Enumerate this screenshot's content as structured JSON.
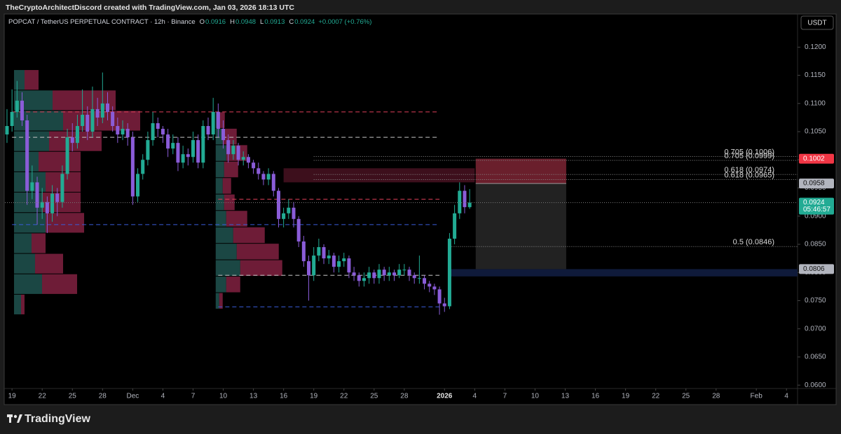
{
  "header": {
    "credit": "TheCryptoArchitectDiscord created with TradingView.com, Jan 03, 2026 18:13 UTC",
    "brand": "TradingView"
  },
  "chart_data": {
    "type": "candlestick",
    "title": "POPCAT / TetherUS PERPETUAL CONTRACT · 12h · Binance",
    "ohlc_legend": {
      "labels": [
        "O",
        "H",
        "L",
        "C"
      ],
      "values": [
        0.0916,
        0.0948,
        0.0913,
        0.0924
      ]
    },
    "change": "+0.0007 (+0.76%)",
    "currency": "USDT",
    "series": [
      {
        "up_color": "#22ab94",
        "down_color": "#8a5cd8",
        "ohlc": [
          [
            0.1045,
            0.109,
            0.103,
            0.106
          ],
          [
            0.106,
            0.1125,
            0.105,
            0.1085
          ],
          [
            0.1085,
            0.114,
            0.1075,
            0.1105
          ],
          [
            0.1105,
            0.112,
            0.106,
            0.107
          ],
          [
            0.107,
            0.108,
            0.092,
            0.0945
          ],
          [
            0.0945,
            0.099,
            0.093,
            0.096
          ],
          [
            0.096,
            0.097,
            0.0885,
            0.0915
          ],
          [
            0.0915,
            0.095,
            0.0895,
            0.0925
          ],
          [
            0.0925,
            0.0935,
            0.087,
            0.0905
          ],
          [
            0.0905,
            0.0955,
            0.089,
            0.094
          ],
          [
            0.094,
            0.095,
            0.09,
            0.0925
          ],
          [
            0.0925,
            0.099,
            0.0915,
            0.0975
          ],
          [
            0.0975,
            0.1055,
            0.0965,
            0.104
          ],
          [
            0.104,
            0.1065,
            0.1015,
            0.103
          ],
          [
            0.103,
            0.108,
            0.102,
            0.106
          ],
          [
            0.106,
            0.1125,
            0.105,
            0.108
          ],
          [
            0.108,
            0.1095,
            0.1035,
            0.105
          ],
          [
            0.105,
            0.113,
            0.104,
            0.109
          ],
          [
            0.109,
            0.111,
            0.106,
            0.1075
          ],
          [
            0.1075,
            0.1155,
            0.1065,
            0.11
          ],
          [
            0.11,
            0.112,
            0.107,
            0.1085
          ],
          [
            0.1085,
            0.1095,
            0.105,
            0.106
          ],
          [
            0.106,
            0.1075,
            0.103,
            0.1045
          ],
          [
            0.1045,
            0.107,
            0.1035,
            0.1055
          ],
          [
            0.1055,
            0.1065,
            0.1025,
            0.104
          ],
          [
            0.104,
            0.105,
            0.092,
            0.0935
          ],
          [
            0.0935,
            0.0985,
            0.0925,
            0.0975
          ],
          [
            0.0975,
            0.101,
            0.0965,
            0.1
          ],
          [
            0.1,
            0.105,
            0.099,
            0.1035
          ],
          [
            0.1035,
            0.1085,
            0.1025,
            0.1065
          ],
          [
            0.1065,
            0.1075,
            0.104,
            0.1055
          ],
          [
            0.1055,
            0.106,
            0.103,
            0.1045
          ],
          [
            0.1045,
            0.1055,
            0.1005,
            0.102
          ],
          [
            0.102,
            0.1045,
            0.101,
            0.103
          ],
          [
            0.103,
            0.104,
            0.098,
            0.0995
          ],
          [
            0.0995,
            0.1025,
            0.0985,
            0.101
          ],
          [
            0.101,
            0.102,
            0.099,
            0.1005
          ],
          [
            0.1005,
            0.105,
            0.0995,
            0.1035
          ],
          [
            0.1035,
            0.1045,
            0.0985,
            0.0995
          ],
          [
            0.0995,
            0.107,
            0.0985,
            0.106
          ],
          [
            0.106,
            0.1075,
            0.1035,
            0.1045
          ],
          [
            0.1045,
            0.111,
            0.1035,
            0.1085
          ],
          [
            0.1085,
            0.11,
            0.104,
            0.1055
          ],
          [
            0.1055,
            0.107,
            0.102,
            0.1035
          ],
          [
            0.1035,
            0.1045,
            0.0995,
            0.101
          ],
          [
            0.101,
            0.1035,
            0.1,
            0.1025
          ],
          [
            0.1025,
            0.103,
            0.099,
            0.1
          ],
          [
            0.1,
            0.1015,
            0.099,
            0.1005
          ],
          [
            0.1005,
            0.101,
            0.0985,
            0.0995
          ],
          [
            0.0995,
            0.1,
            0.0975,
            0.0985
          ],
          [
            0.0985,
            0.0995,
            0.0965,
            0.0975
          ],
          [
            0.0975,
            0.098,
            0.0955,
            0.0965
          ],
          [
            0.0965,
            0.0985,
            0.0955,
            0.0975
          ],
          [
            0.0975,
            0.098,
            0.0935,
            0.0945
          ],
          [
            0.0945,
            0.095,
            0.088,
            0.0895
          ],
          [
            0.0895,
            0.0915,
            0.088,
            0.0905
          ],
          [
            0.0905,
            0.093,
            0.0895,
            0.0915
          ],
          [
            0.0915,
            0.0925,
            0.088,
            0.0895
          ],
          [
            0.0895,
            0.09,
            0.0845,
            0.0855
          ],
          [
            0.0855,
            0.0865,
            0.081,
            0.082
          ],
          [
            0.082,
            0.083,
            0.075,
            0.0795
          ],
          [
            0.0795,
            0.0845,
            0.0785,
            0.083
          ],
          [
            0.083,
            0.086,
            0.082,
            0.0845
          ],
          [
            0.0845,
            0.085,
            0.0815,
            0.0825
          ],
          [
            0.0825,
            0.084,
            0.0815,
            0.083
          ],
          [
            0.083,
            0.0835,
            0.08,
            0.081
          ],
          [
            0.081,
            0.083,
            0.08,
            0.082
          ],
          [
            0.082,
            0.0835,
            0.081,
            0.0825
          ],
          [
            0.0825,
            0.083,
            0.079,
            0.08
          ],
          [
            0.08,
            0.081,
            0.0785,
            0.0795
          ],
          [
            0.0795,
            0.08,
            0.0775,
            0.0785
          ],
          [
            0.0785,
            0.08,
            0.0775,
            0.079
          ],
          [
            0.079,
            0.081,
            0.078,
            0.08
          ],
          [
            0.08,
            0.0805,
            0.078,
            0.079
          ],
          [
            0.079,
            0.0815,
            0.078,
            0.0805
          ],
          [
            0.0805,
            0.081,
            0.0785,
            0.0795
          ],
          [
            0.0795,
            0.081,
            0.0785,
            0.08
          ],
          [
            0.08,
            0.0805,
            0.0785,
            0.0795
          ],
          [
            0.0795,
            0.0815,
            0.079,
            0.0805
          ],
          [
            0.0805,
            0.0815,
            0.0795,
            0.0805
          ],
          [
            0.0805,
            0.081,
            0.0785,
            0.0795
          ],
          [
            0.0795,
            0.08,
            0.078,
            0.079
          ],
          [
            0.079,
            0.083,
            0.078,
            0.079
          ],
          [
            0.079,
            0.0795,
            0.077,
            0.078
          ],
          [
            0.078,
            0.0785,
            0.0765,
            0.0775
          ],
          [
            0.0775,
            0.078,
            0.076,
            0.077
          ],
          [
            0.077,
            0.0775,
            0.0725,
            0.0745
          ],
          [
            0.0745,
            0.0755,
            0.073,
            0.074
          ],
          [
            0.074,
            0.087,
            0.0735,
            0.086
          ],
          [
            0.086,
            0.092,
            0.085,
            0.0905
          ],
          [
            0.0905,
            0.096,
            0.0895,
            0.0945
          ],
          [
            0.0945,
            0.0955,
            0.0905,
            0.0916
          ],
          [
            0.0916,
            0.0948,
            0.0913,
            0.0924
          ]
        ]
      }
    ],
    "xlim": [
      -1.39,
      157.2
    ],
    "ylim": [
      0.0594,
      0.1234
    ],
    "xticks": [
      {
        "value": 1,
        "label": "19"
      },
      {
        "value": 7,
        "label": "22"
      },
      {
        "value": 13,
        "label": "25"
      },
      {
        "value": 19,
        "label": "28"
      },
      {
        "value": 25,
        "label": "Dec"
      },
      {
        "value": 31,
        "label": "4"
      },
      {
        "value": 37,
        "label": "7"
      },
      {
        "value": 43,
        "label": "10"
      },
      {
        "value": 49,
        "label": "13"
      },
      {
        "value": 55,
        "label": "16"
      },
      {
        "value": 61,
        "label": "19"
      },
      {
        "value": 67,
        "label": "22"
      },
      {
        "value": 73,
        "label": "25"
      },
      {
        "value": 79,
        "label": "28"
      },
      {
        "value": 87,
        "label": "2026"
      },
      {
        "value": 93,
        "label": "4"
      },
      {
        "value": 99,
        "label": "7"
      },
      {
        "value": 105,
        "label": "10"
      },
      {
        "value": 111,
        "label": "13"
      },
      {
        "value": 117,
        "label": "16"
      },
      {
        "value": 123,
        "label": "19"
      },
      {
        "value": 129,
        "label": "22"
      },
      {
        "value": 135,
        "label": "25"
      },
      {
        "value": 141,
        "label": "28"
      },
      {
        "value": 149,
        "label": "Feb"
      },
      {
        "value": 155,
        "label": "4"
      }
    ],
    "yticks": [
      {
        "value": 0.06,
        "label": "0.0600"
      },
      {
        "value": 0.065,
        "label": "0.0650"
      },
      {
        "value": 0.07,
        "label": "0.0700"
      },
      {
        "value": 0.075,
        "label": "0.0750"
      },
      {
        "value": 0.08,
        "label": "0.0800"
      },
      {
        "value": 0.085,
        "label": "0.0850"
      },
      {
        "value": 0.09,
        "label": "0.0900"
      },
      {
        "value": 0.095,
        "label": "0.0950"
      },
      {
        "value": 0.1,
        "label": "0.1000"
      },
      {
        "value": 0.105,
        "label": "0.1050"
      },
      {
        "value": 0.11,
        "label": "0.1100"
      },
      {
        "value": 0.115,
        "label": "0.1150"
      },
      {
        "value": 0.12,
        "label": "0.1200"
      }
    ],
    "grid": false,
    "volume_profiles": [
      {
        "from": 1.4,
        "price_range": [
          0.0725,
          0.116
        ],
        "up_color": "#1e4f4b",
        "down_color": "#7a1f3d",
        "rows": [
          [
            10,
            5
          ],
          [
            40,
            50
          ],
          [
            30,
            40
          ],
          [
            25,
            20
          ],
          [
            45,
            55
          ],
          [
            40,
            55
          ],
          [
            45,
            50
          ],
          [
            35,
            60
          ],
          [
            50,
            75
          ],
          [
            70,
            110
          ],
          [
            55,
            90
          ],
          [
            15,
            20
          ]
        ]
      },
      {
        "from": 41.5,
        "price_range": [
          0.0735,
          0.1085
        ],
        "up_color": "#1e4f4b",
        "down_color": "#7a1f3d",
        "rows": [
          [
            5,
            5
          ],
          [
            15,
            20
          ],
          [
            35,
            60
          ],
          [
            30,
            60
          ],
          [
            25,
            45
          ],
          [
            15,
            30
          ],
          [
            12,
            15
          ],
          [
            10,
            12
          ],
          [
            12,
            20
          ],
          [
            15,
            30
          ],
          [
            10,
            20
          ],
          [
            5,
            8
          ]
        ]
      }
    ],
    "zones": [
      {
        "from": 55,
        "to": 93,
        "top": 0.0985,
        "bottom": 0.096,
        "color": "#3d0f1c"
      },
      {
        "from": 88,
        "to": 157.2,
        "top": 0.0806,
        "bottom": 0.0793,
        "color": "#0f1a3a"
      }
    ],
    "position": {
      "from": 93.2,
      "to": 111.2,
      "stop": 0.1002,
      "entry": 0.0958,
      "target": 0.0806,
      "stop_color": "#7d2434",
      "target_color": "#262626"
    },
    "levels": [
      {
        "price": 0.1085,
        "from": 1,
        "to": 86,
        "color": "#e0405a"
      },
      {
        "price": 0.104,
        "from": 1,
        "to": 86,
        "color": "#c8c8c8"
      },
      {
        "price": 0.0885,
        "from": 1,
        "to": 86,
        "color": "#3a5bd9"
      },
      {
        "price": 0.093,
        "from": 42,
        "to": 86,
        "color": "#e0405a"
      },
      {
        "price": 0.0795,
        "from": 42,
        "to": 86,
        "color": "#c8c8c8"
      },
      {
        "price": 0.0739,
        "from": 42,
        "to": 86,
        "color": "#3a5bd9"
      }
    ],
    "fib_levels": [
      {
        "price": 0.1006,
        "label": "0.705 (0.1006)",
        "from": 61
      },
      {
        "price": 0.0999,
        "label": "0.705 (0.0999)",
        "from": 61
      },
      {
        "price": 0.0974,
        "label": "0.618 (0.0974)",
        "from": 61
      },
      {
        "price": 0.0965,
        "label": "0.618 (0.0965)",
        "from": 61
      },
      {
        "price": 0.0846,
        "label": "0.5 (0.0846)",
        "from": 88
      }
    ],
    "price_tags": [
      {
        "value": 0.1002,
        "color": "#f23645",
        "text_color": "#ffffff"
      },
      {
        "value": 0.0958,
        "color": "#b2b5be",
        "text_color": "#131313"
      },
      {
        "value": 0.0924,
        "color": "#22ab94",
        "text_color": "#ffffff",
        "countdown": "05:46:57"
      },
      {
        "value": 0.0806,
        "color": "#b2b5be",
        "text_color": "#131313"
      }
    ],
    "last_price_line": true
  }
}
